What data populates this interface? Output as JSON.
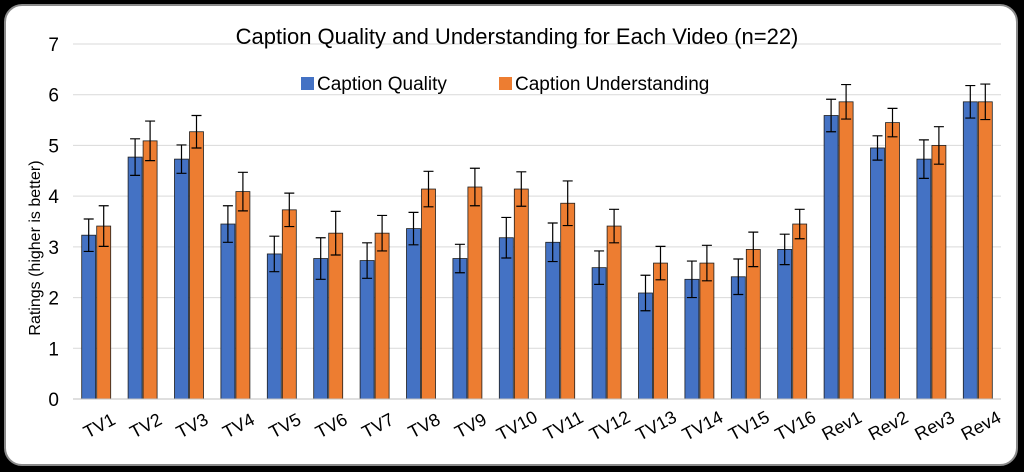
{
  "chart_data": {
    "type": "bar",
    "title": "Caption Quality and Understanding for Each Video (n=22)",
    "ylabel": "Ratings (higher is better)",
    "xlabel": "",
    "ylim": [
      0,
      7
    ],
    "yticks": [
      0,
      1,
      2,
      3,
      4,
      5,
      6,
      7
    ],
    "grid": true,
    "legend_position": "top-center",
    "categories": [
      "TV1",
      "TV2",
      "TV3",
      "TV4",
      "TV5",
      "TV6",
      "TV7",
      "TV8",
      "TV9",
      "TV10",
      "TV11",
      "TV12",
      "TV13",
      "TV14",
      "TV15",
      "TV16",
      "Rev1",
      "Rev2",
      "Rev3",
      "Rev4"
    ],
    "series": [
      {
        "name": "Caption Quality",
        "color": "#4472c4",
        "values": [
          3.23,
          4.77,
          4.73,
          3.45,
          2.86,
          2.77,
          2.73,
          3.36,
          2.77,
          3.18,
          3.09,
          2.59,
          2.09,
          2.36,
          2.41,
          2.95,
          5.59,
          4.95,
          4.73,
          5.86
        ],
        "error": [
          0.32,
          0.36,
          0.28,
          0.36,
          0.35,
          0.41,
          0.35,
          0.32,
          0.28,
          0.4,
          0.38,
          0.33,
          0.35,
          0.36,
          0.35,
          0.3,
          0.32,
          0.24,
          0.38,
          0.32
        ]
      },
      {
        "name": "Caption Understanding",
        "color": "#ed7d31",
        "values": [
          3.41,
          5.09,
          5.27,
          4.09,
          3.73,
          3.27,
          3.27,
          4.14,
          4.18,
          4.14,
          3.86,
          3.41,
          2.68,
          2.68,
          2.95,
          3.45,
          5.86,
          5.45,
          5.0,
          5.86
        ],
        "error": [
          0.4,
          0.39,
          0.32,
          0.38,
          0.33,
          0.43,
          0.35,
          0.35,
          0.37,
          0.34,
          0.44,
          0.33,
          0.33,
          0.35,
          0.34,
          0.29,
          0.34,
          0.28,
          0.37,
          0.35
        ]
      }
    ]
  }
}
